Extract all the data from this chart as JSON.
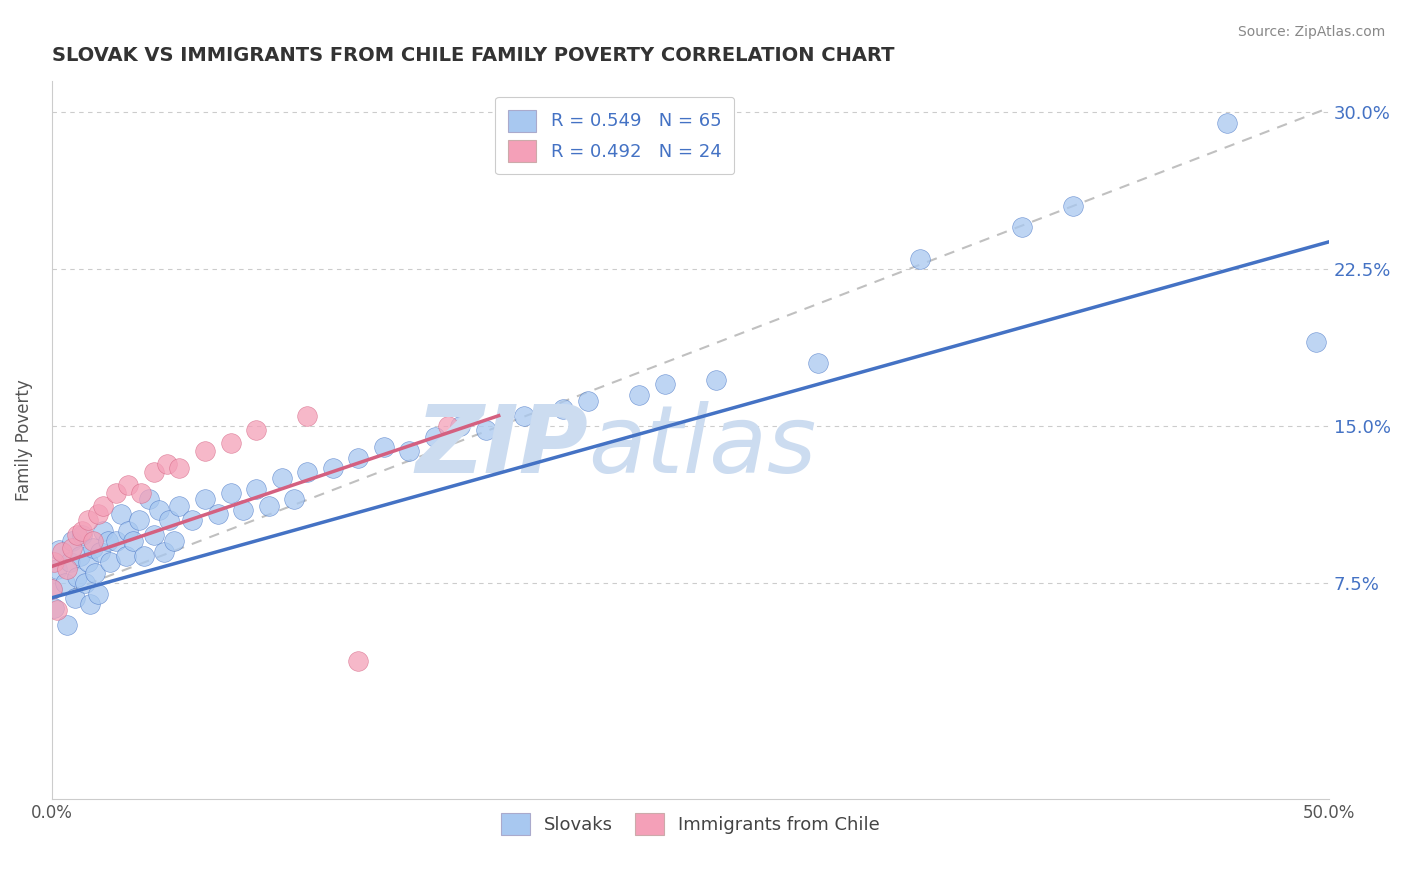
{
  "title": "SLOVAK VS IMMIGRANTS FROM CHILE FAMILY POVERTY CORRELATION CHART",
  "source": "Source: ZipAtlas.com",
  "ylabel": "Family Poverty",
  "xlim": [
    0.0,
    0.5
  ],
  "ylim": [
    -0.028,
    0.315
  ],
  "y_ticks": [
    0.075,
    0.15,
    0.225,
    0.3
  ],
  "y_tick_labels": [
    "7.5%",
    "15.0%",
    "22.5%",
    "30.0%"
  ],
  "legend_label1": "Slovaks",
  "legend_label2": "Immigrants from Chile",
  "blue_scatter_color": "#a8c8f0",
  "pink_scatter_color": "#f4a0b8",
  "blue_line_color": "#4472C4",
  "pink_line_color": "#d46080",
  "dashed_line_color": "#c0c0c0",
  "watermark_color": "#ccdcf0",
  "blue_line_y_start": 0.068,
  "blue_line_y_end": 0.238,
  "pink_line_x_end": 0.175,
  "pink_line_y_start": 0.083,
  "pink_line_y_end": 0.155,
  "dashed_line_y_start": 0.068,
  "dashed_line_y_end": 0.302,
  "blue_x": [
    0.0,
    0.001,
    0.002,
    0.003,
    0.005,
    0.006,
    0.007,
    0.008,
    0.009,
    0.01,
    0.011,
    0.012,
    0.013,
    0.014,
    0.015,
    0.016,
    0.017,
    0.018,
    0.019,
    0.02,
    0.022,
    0.023,
    0.025,
    0.027,
    0.029,
    0.03,
    0.032,
    0.034,
    0.036,
    0.038,
    0.04,
    0.042,
    0.044,
    0.046,
    0.048,
    0.05,
    0.055,
    0.06,
    0.065,
    0.07,
    0.075,
    0.08,
    0.085,
    0.09,
    0.095,
    0.1,
    0.11,
    0.12,
    0.13,
    0.14,
    0.15,
    0.16,
    0.17,
    0.185,
    0.2,
    0.21,
    0.23,
    0.24,
    0.26,
    0.3,
    0.34,
    0.38,
    0.4,
    0.46,
    0.495
  ],
  "blue_y": [
    0.072,
    0.063,
    0.082,
    0.091,
    0.075,
    0.055,
    0.085,
    0.095,
    0.068,
    0.078,
    0.088,
    0.098,
    0.075,
    0.085,
    0.065,
    0.092,
    0.08,
    0.07,
    0.09,
    0.1,
    0.095,
    0.085,
    0.095,
    0.108,
    0.088,
    0.1,
    0.095,
    0.105,
    0.088,
    0.115,
    0.098,
    0.11,
    0.09,
    0.105,
    0.095,
    0.112,
    0.105,
    0.115,
    0.108,
    0.118,
    0.11,
    0.12,
    0.112,
    0.125,
    0.115,
    0.128,
    0.13,
    0.135,
    0.14,
    0.138,
    0.145,
    0.15,
    0.148,
    0.155,
    0.158,
    0.162,
    0.165,
    0.17,
    0.172,
    0.18,
    0.23,
    0.245,
    0.255,
    0.295,
    0.19
  ],
  "pink_x": [
    0.0,
    0.001,
    0.002,
    0.004,
    0.006,
    0.008,
    0.01,
    0.012,
    0.014,
    0.016,
    0.018,
    0.02,
    0.025,
    0.03,
    0.035,
    0.04,
    0.045,
    0.05,
    0.06,
    0.07,
    0.08,
    0.1,
    0.12,
    0.155
  ],
  "pink_y": [
    0.072,
    0.085,
    0.062,
    0.09,
    0.082,
    0.092,
    0.098,
    0.1,
    0.105,
    0.095,
    0.108,
    0.112,
    0.118,
    0.122,
    0.118,
    0.128,
    0.132,
    0.13,
    0.138,
    0.142,
    0.148,
    0.155,
    0.038,
    0.15
  ]
}
